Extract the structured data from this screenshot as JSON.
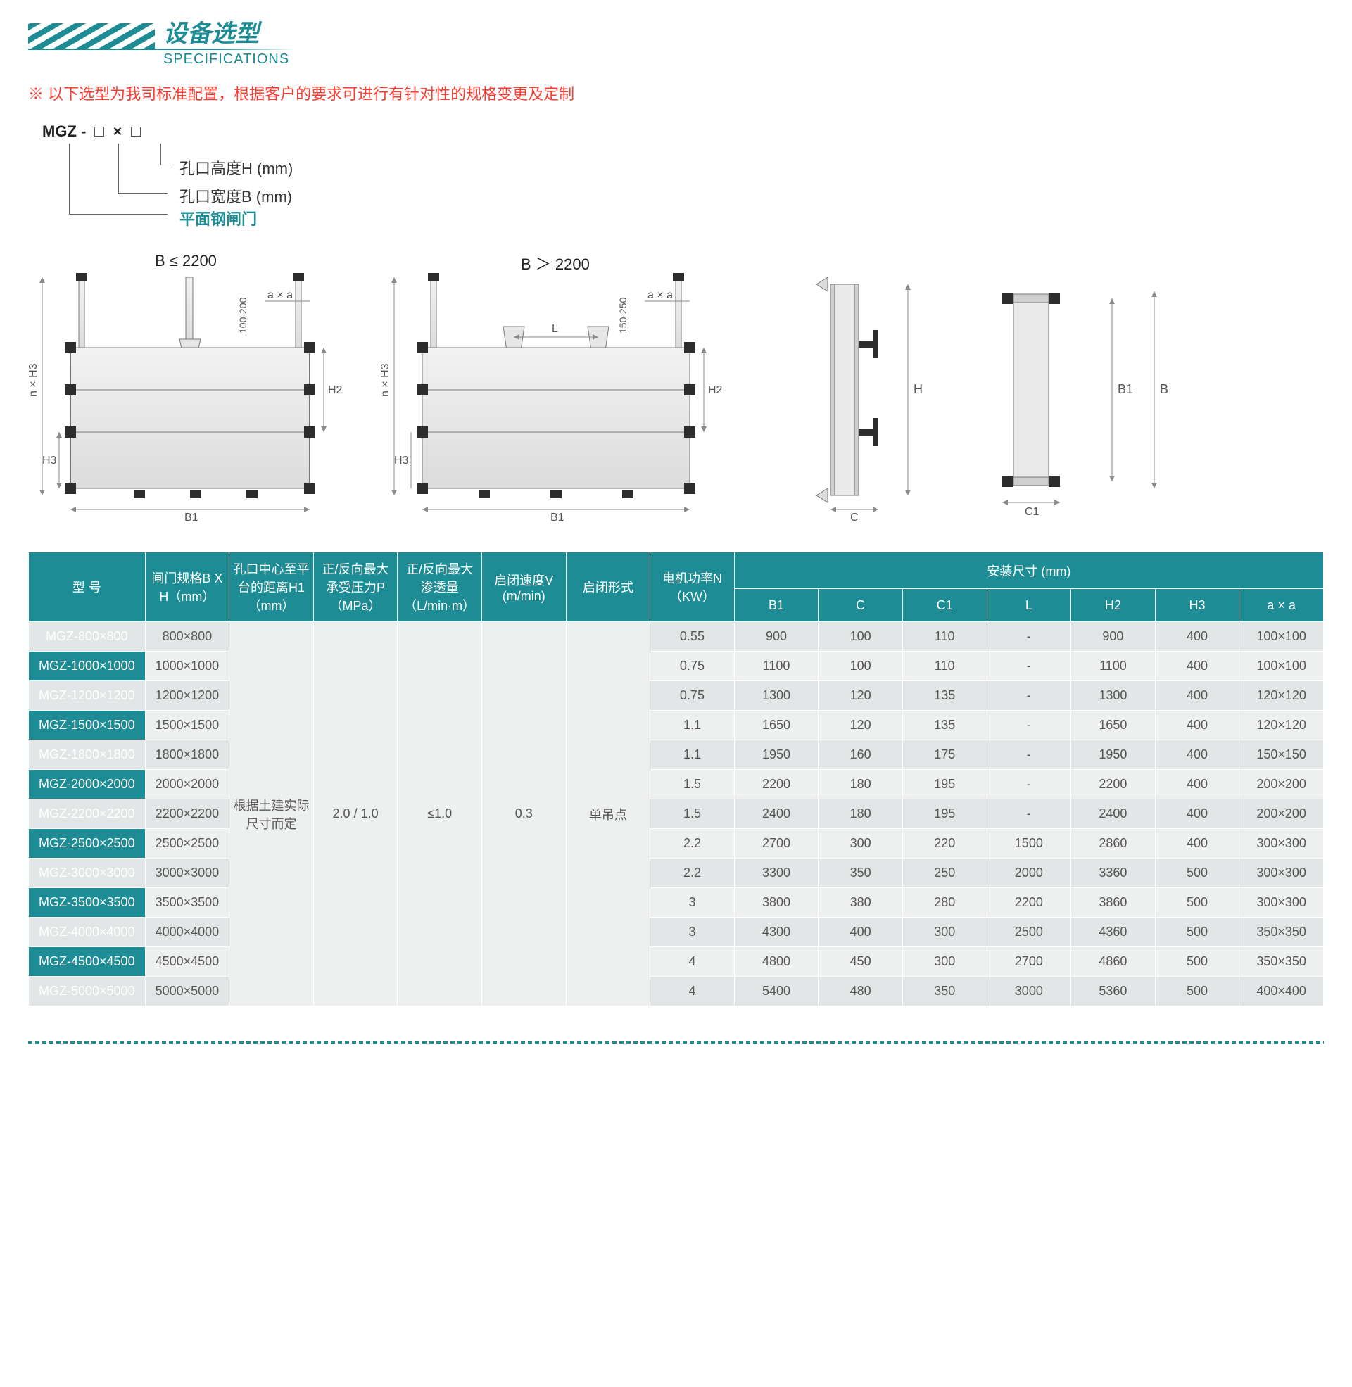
{
  "header": {
    "title_cn": "设备选型",
    "title_en": "SPECIFICATIONS"
  },
  "note": "以下选型为我司标准配置，根据客户的要求可进行有针对性的规格变更及定制",
  "legend": {
    "model_prefix": "MGZ - □ × □",
    "lines": [
      {
        "text": "孔口高度H (mm)"
      },
      {
        "text": "孔口宽度B (mm)"
      },
      {
        "text": "平面钢闸门",
        "emphasis": true
      }
    ]
  },
  "diagrams": {
    "d1_title": "B ≤ 2200",
    "d2_title": "B ＞ 2200",
    "labels": [
      "a × a",
      "n × H3",
      "100-200",
      "150-250",
      "B1",
      "H2",
      "H3",
      "L",
      "H",
      "C",
      "C1",
      "B",
      "B1"
    ],
    "colors": {
      "stroke": "#6e6e6e",
      "fill_light": "#f4f4f4",
      "fill_grad1": "#e9eaea",
      "fill_grad2": "#d9dada",
      "dim": "#8a8a8a",
      "black": "#2d2d2d"
    }
  },
  "table": {
    "headers": {
      "model": "型 号",
      "size": "闸门规格B X H（mm）",
      "h1": "孔口中心至平台的距离H1（mm）",
      "p": "正/反向最大承受压力P（MPa）",
      "leak": "正/反向最大渗透量（L/min·m）",
      "v": "启闭速度V (m/min)",
      "type": "启闭形式",
      "n": "电机功率N（KW）",
      "install": "安装尺寸 (mm)",
      "b1": "B1",
      "c": "C",
      "c1": "C1",
      "l": "L",
      "h2": "H2",
      "h3": "H3",
      "aa": "a × a"
    },
    "merged": {
      "h1": "根据土建实际尺寸而定",
      "p": "2.0 / 1.0",
      "leak": "≤1.0",
      "v": "0.3",
      "type": "单吊点"
    },
    "rows": [
      {
        "model": "MGZ-800×800",
        "size": "800×800",
        "n": "0.55",
        "b1": "900",
        "c": "100",
        "c1": "110",
        "l": "-",
        "h2": "900",
        "h3": "400",
        "aa": "100×100"
      },
      {
        "model": "MGZ-1000×1000",
        "size": "1000×1000",
        "n": "0.75",
        "b1": "1100",
        "c": "100",
        "c1": "110",
        "l": "-",
        "h2": "1100",
        "h3": "400",
        "aa": "100×100"
      },
      {
        "model": "MGZ-1200×1200",
        "size": "1200×1200",
        "n": "0.75",
        "b1": "1300",
        "c": "120",
        "c1": "135",
        "l": "-",
        "h2": "1300",
        "h3": "400",
        "aa": "120×120"
      },
      {
        "model": "MGZ-1500×1500",
        "size": "1500×1500",
        "n": "1.1",
        "b1": "1650",
        "c": "120",
        "c1": "135",
        "l": "-",
        "h2": "1650",
        "h3": "400",
        "aa": "120×120"
      },
      {
        "model": "MGZ-1800×1800",
        "size": "1800×1800",
        "n": "1.1",
        "b1": "1950",
        "c": "160",
        "c1": "175",
        "l": "-",
        "h2": "1950",
        "h3": "400",
        "aa": "150×150"
      },
      {
        "model": "MGZ-2000×2000",
        "size": "2000×2000",
        "n": "1.5",
        "b1": "2200",
        "c": "180",
        "c1": "195",
        "l": "-",
        "h2": "2200",
        "h3": "400",
        "aa": "200×200"
      },
      {
        "model": "MGZ-2200×2200",
        "size": "2200×2200",
        "n": "1.5",
        "b1": "2400",
        "c": "180",
        "c1": "195",
        "l": "-",
        "h2": "2400",
        "h3": "400",
        "aa": "200×200"
      },
      {
        "model": "MGZ-2500×2500",
        "size": "2500×2500",
        "n": "2.2",
        "b1": "2700",
        "c": "300",
        "c1": "220",
        "l": "1500",
        "h2": "2860",
        "h3": "400",
        "aa": "300×300"
      },
      {
        "model": "MGZ-3000×3000",
        "size": "3000×3000",
        "n": "2.2",
        "b1": "3300",
        "c": "350",
        "c1": "250",
        "l": "2000",
        "h2": "3360",
        "h3": "500",
        "aa": "300×300"
      },
      {
        "model": "MGZ-3500×3500",
        "size": "3500×3500",
        "n": "3",
        "b1": "3800",
        "c": "380",
        "c1": "280",
        "l": "2200",
        "h2": "3860",
        "h3": "500",
        "aa": "300×300"
      },
      {
        "model": "MGZ-4000×4000",
        "size": "4000×4000",
        "n": "3",
        "b1": "4300",
        "c": "400",
        "c1": "300",
        "l": "2500",
        "h2": "4360",
        "h3": "500",
        "aa": "350×350"
      },
      {
        "model": "MGZ-4500×4500",
        "size": "4500×4500",
        "n": "4",
        "b1": "4800",
        "c": "450",
        "c1": "300",
        "l": "2700",
        "h2": "4860",
        "h3": "500",
        "aa": "350×350"
      },
      {
        "model": "MGZ-5000×5000",
        "size": "5000×5000",
        "n": "4",
        "b1": "5400",
        "c": "480",
        "c1": "350",
        "l": "3000",
        "h2": "5360",
        "h3": "500",
        "aa": "400×400"
      }
    ]
  }
}
